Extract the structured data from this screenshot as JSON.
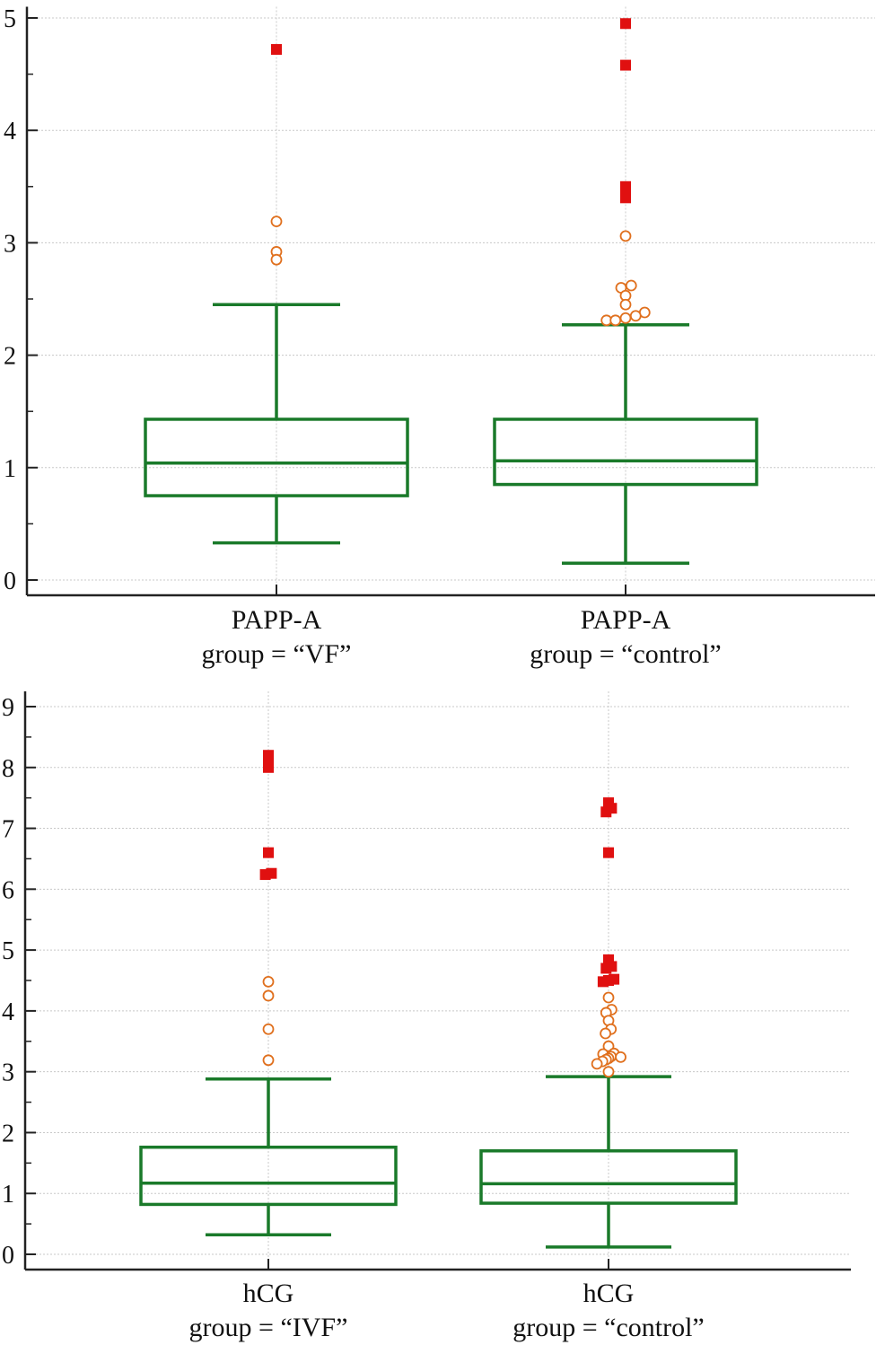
{
  "colors": {
    "box": "#1a7a2a",
    "far_outlier": "#e01010",
    "outlier": "#e0701e",
    "axis": "#222222",
    "grid": "#c8c8c8"
  },
  "chart_data": [
    {
      "type": "box",
      "y_ticks": [
        "0",
        "1",
        "2",
        "3",
        "4",
        "5"
      ],
      "ylim": [
        -0.1,
        5.1
      ],
      "groups": [
        {
          "label_line1": "PAPP-A",
          "label_line2": "group = “VF”",
          "whisker_low": 0.33,
          "q1": 0.75,
          "median": 1.04,
          "q3": 1.43,
          "whisker_high": 2.45,
          "outliers": [
            {
              "value": 3.19,
              "offset": 0
            },
            {
              "value": 2.92,
              "offset": 0
            },
            {
              "value": 2.85,
              "offset": 0
            }
          ],
          "far_outliers": [
            {
              "value": 4.72,
              "offset": 0
            }
          ]
        },
        {
          "label_line1": "PAPP-A",
          "label_line2": "group = “control”",
          "whisker_low": 0.15,
          "q1": 0.85,
          "median": 1.06,
          "q3": 1.43,
          "whisker_high": 2.27,
          "outliers": [
            {
              "value": 3.06,
              "offset": 0
            },
            {
              "value": 2.62,
              "offset": 0.05
            },
            {
              "value": 2.6,
              "offset": -0.04
            },
            {
              "value": 2.53,
              "offset": 0
            },
            {
              "value": 2.45,
              "offset": 0
            },
            {
              "value": 2.38,
              "offset": 0.17
            },
            {
              "value": 2.35,
              "offset": 0.09
            },
            {
              "value": 2.33,
              "offset": 0
            },
            {
              "value": 2.31,
              "offset": -0.17
            },
            {
              "value": 2.31,
              "offset": -0.09
            }
          ],
          "far_outliers": [
            {
              "value": 4.95,
              "offset": 0
            },
            {
              "value": 4.58,
              "offset": 0
            },
            {
              "value": 3.5,
              "offset": 0
            },
            {
              "value": 3.45,
              "offset": 0
            },
            {
              "value": 3.4,
              "offset": 0
            }
          ]
        }
      ]
    },
    {
      "type": "box",
      "y_ticks": [
        "0",
        "1",
        "2",
        "3",
        "4",
        "5",
        "6",
        "7",
        "8",
        "9"
      ],
      "ylim": [
        -0.25,
        9.25
      ],
      "groups": [
        {
          "label_line1": "hCG",
          "label_line2": "group = “IVF”",
          "whisker_low": 0.32,
          "q1": 0.82,
          "median": 1.17,
          "q3": 1.76,
          "whisker_high": 2.88,
          "outliers": [
            {
              "value": 4.48,
              "offset": 0
            },
            {
              "value": 4.25,
              "offset": 0
            },
            {
              "value": 3.7,
              "offset": 0
            },
            {
              "value": 3.19,
              "offset": 0
            }
          ],
          "far_outliers": [
            {
              "value": 8.2,
              "offset": 0
            },
            {
              "value": 8.1,
              "offset": 0
            },
            {
              "value": 8.0,
              "offset": 0
            },
            {
              "value": 6.6,
              "offset": 0
            },
            {
              "value": 6.26,
              "offset": 0.05
            },
            {
              "value": 6.24,
              "offset": -0.05
            }
          ]
        },
        {
          "label_line1": "hCG",
          "label_line2": "group = “control”",
          "whisker_low": 0.12,
          "q1": 0.84,
          "median": 1.16,
          "q3": 1.7,
          "whisker_high": 2.92,
          "outliers": [
            {
              "value": 4.22,
              "offset": 0
            },
            {
              "value": 4.02,
              "offset": 0.05
            },
            {
              "value": 3.97,
              "offset": -0.04
            },
            {
              "value": 3.84,
              "offset": 0
            },
            {
              "value": 3.7,
              "offset": 0.04
            },
            {
              "value": 3.63,
              "offset": -0.05
            },
            {
              "value": 3.42,
              "offset": 0
            },
            {
              "value": 3.3,
              "offset": 0.09
            },
            {
              "value": 3.29,
              "offset": -0.09
            },
            {
              "value": 3.25,
              "offset": 0.04
            },
            {
              "value": 3.24,
              "offset": 0.2
            },
            {
              "value": 3.22,
              "offset": 0
            },
            {
              "value": 3.2,
              "offset": -0.04
            },
            {
              "value": 3.17,
              "offset": -0.1
            },
            {
              "value": 3.13,
              "offset": -0.19
            },
            {
              "value": 3.0,
              "offset": 0
            }
          ],
          "far_outliers": [
            {
              "value": 7.42,
              "offset": 0
            },
            {
              "value": 7.33,
              "offset": 0.05
            },
            {
              "value": 7.27,
              "offset": -0.04
            },
            {
              "value": 6.6,
              "offset": 0
            },
            {
              "value": 4.84,
              "offset": 0
            },
            {
              "value": 4.73,
              "offset": 0.05
            },
            {
              "value": 4.7,
              "offset": -0.04
            },
            {
              "value": 4.52,
              "offset": 0.09
            },
            {
              "value": 4.5,
              "offset": 0
            },
            {
              "value": 4.48,
              "offset": -0.09
            }
          ]
        }
      ]
    }
  ]
}
